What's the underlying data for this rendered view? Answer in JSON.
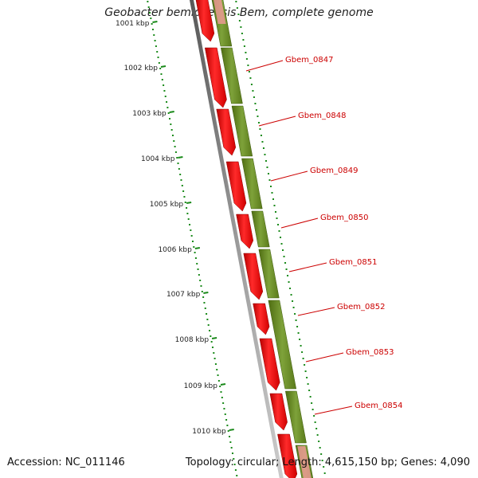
{
  "title": "Geobacter bemidjiensis Bem, complete genome",
  "accession_text": "Accession: NC_011146",
  "summary_text": "Topology: circular; Length: 4,615,150 bp; Genes: 4,090",
  "scale_labels": [
    "1001 kbp",
    "1002 kbp",
    "1003 kbp",
    "1004 kbp",
    "1005 kbp",
    "1006 kbp",
    "1007 kbp",
    "1008 kbp",
    "1009 kbp",
    "1010 kbp"
  ],
  "gene_labels": [
    "Gbem_0847",
    "Gbem_0848",
    "Gbem_0849",
    "Gbem_0850",
    "Gbem_0851",
    "Gbem_0852",
    "Gbem_0853",
    "Gbem_0854"
  ],
  "colors": {
    "cds_red": "#ee1111",
    "cds_green": "#6b8e23",
    "backbone_gray": "#888888",
    "tick_green": "#1a8a1a",
    "label_red": "#cc0000"
  }
}
